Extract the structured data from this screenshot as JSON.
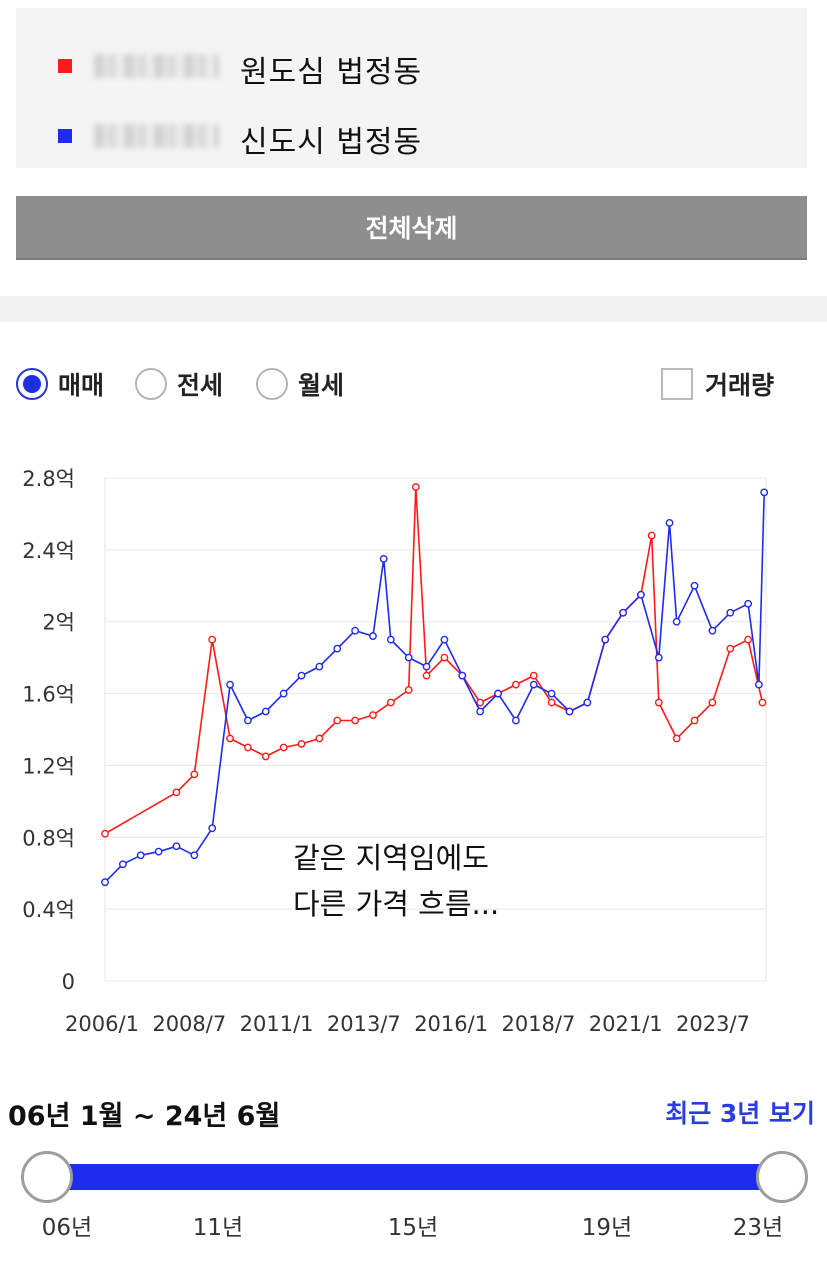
{
  "legend": {
    "items": [
      {
        "label": "원도심 법정동",
        "color": "#ff1a1a"
      },
      {
        "label": "신도시 법정동",
        "color": "#1f2bef"
      }
    ]
  },
  "clear_button": {
    "label": "전체삭제"
  },
  "trade_types": {
    "options": [
      "매매",
      "전세",
      "월세"
    ],
    "selected": "매매"
  },
  "volume_toggle": {
    "label": "거래량",
    "checked": false
  },
  "chart_data": {
    "type": "line",
    "x_start": "2006/1",
    "x_end": "2024/6",
    "x_ticks": [
      "2006/1",
      "2008/7",
      "2011/1",
      "2013/7",
      "2016/1",
      "2018/7",
      "2021/1",
      "2023/7"
    ],
    "y_ticks": [
      "0",
      "0.4억",
      "0.8억",
      "1.2억",
      "1.6억",
      "2억",
      "2.4억",
      "2.8억"
    ],
    "ylim": [
      0,
      2.8
    ],
    "yunit": "억",
    "grid": true,
    "annotation": [
      "같은 지역임에도",
      "다른 가격 흐름..."
    ],
    "series": [
      {
        "name": "원도심 법정동",
        "color": "#ff1a1a",
        "x": [
          2006.0,
          2008.0,
          2008.5,
          2009.0,
          2009.5,
          2010.0,
          2010.5,
          2011.0,
          2011.5,
          2012.0,
          2012.5,
          2013.0,
          2013.5,
          2014.0,
          2014.5,
          2014.7,
          2015.0,
          2015.5,
          2016.0,
          2016.5,
          2017.0,
          2017.5,
          2018.0,
          2018.5,
          2019.0,
          2019.5,
          2020.0,
          2020.5,
          2021.0,
          2021.3,
          2021.5,
          2022.0,
          2022.5,
          2023.0,
          2023.5,
          2024.0,
          2024.4
        ],
        "y": [
          0.82,
          1.05,
          1.15,
          1.9,
          1.35,
          1.3,
          1.25,
          1.3,
          1.32,
          1.35,
          1.45,
          1.45,
          1.48,
          1.55,
          1.62,
          2.75,
          1.7,
          1.8,
          1.7,
          1.55,
          1.6,
          1.65,
          1.7,
          1.55,
          1.5,
          1.55,
          1.9,
          2.05,
          2.15,
          2.48,
          1.55,
          1.35,
          1.45,
          1.55,
          1.85,
          1.9,
          1.55
        ]
      },
      {
        "name": "신도시 법정동",
        "color": "#1f2bef",
        "x": [
          2006.0,
          2006.5,
          2007.0,
          2007.5,
          2008.0,
          2008.5,
          2009.0,
          2009.5,
          2010.0,
          2010.5,
          2011.0,
          2011.5,
          2012.0,
          2012.5,
          2013.0,
          2013.5,
          2013.8,
          2014.0,
          2014.5,
          2015.0,
          2015.5,
          2016.0,
          2016.5,
          2017.0,
          2017.5,
          2018.0,
          2018.5,
          2019.0,
          2019.5,
          2020.0,
          2020.5,
          2021.0,
          2021.5,
          2021.8,
          2022.0,
          2022.5,
          2023.0,
          2023.5,
          2024.0,
          2024.3,
          2024.45
        ],
        "y": [
          0.55,
          0.65,
          0.7,
          0.72,
          0.75,
          0.7,
          0.85,
          1.65,
          1.45,
          1.5,
          1.6,
          1.7,
          1.75,
          1.85,
          1.95,
          1.92,
          2.35,
          1.9,
          1.8,
          1.75,
          1.9,
          1.7,
          1.5,
          1.6,
          1.45,
          1.65,
          1.6,
          1.5,
          1.55,
          1.9,
          2.05,
          2.15,
          1.8,
          2.55,
          2.0,
          2.2,
          1.95,
          2.05,
          2.1,
          1.65,
          2.72
        ]
      }
    ]
  },
  "range": {
    "label": "06년 1월 ~ 24년 6월",
    "recent_link": "최근 3년 보기",
    "start_fraction": 0.0,
    "end_fraction": 1.0,
    "ticks": [
      "06년",
      "11년",
      "15년",
      "19년",
      "23년"
    ]
  }
}
